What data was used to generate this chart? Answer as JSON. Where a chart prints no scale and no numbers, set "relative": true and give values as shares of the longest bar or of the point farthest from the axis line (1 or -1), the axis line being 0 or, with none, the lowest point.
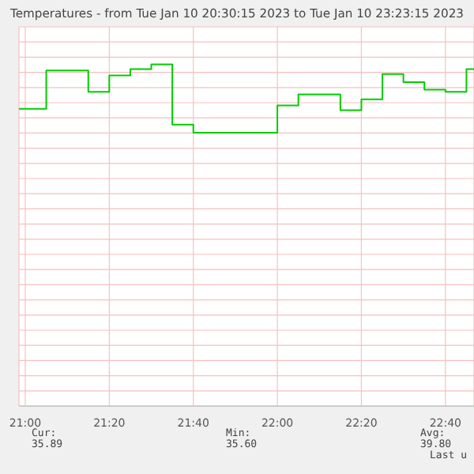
{
  "chart_data": {
    "type": "step",
    "title": "Temperatures - from Tue Jan 10 20:30:15 2023 to Tue Jan 10 23:23:15 2023",
    "relative": true,
    "x": [
      20.975,
      21.0833,
      21.25,
      21.3333,
      21.4167,
      21.5,
      21.5833,
      21.6667,
      22.0,
      22.0833,
      22.25,
      22.3333,
      22.4167,
      22.5,
      22.5833,
      22.6667,
      22.75,
      22.78
    ],
    "series": [
      {
        "color": "#00cc00",
        "values": [
          0.35,
          0.91,
          0.6,
          0.84,
          0.93,
          1,
          0.12,
          0,
          0.4,
          0.56,
          0.33,
          0.49,
          0.86,
          0.74,
          0.63,
          0.6,
          0.93,
          0.93
        ]
      }
    ],
    "xlim": [
      20.975,
      22.78
    ],
    "xticks": [
      {
        "value": 21,
        "label": "21:00"
      },
      {
        "value": 21.3333,
        "label": "21:20"
      },
      {
        "value": 21.6667,
        "label": "21:40"
      },
      {
        "value": 22,
        "label": "22:00"
      },
      {
        "value": 22.3333,
        "label": "22:20"
      },
      {
        "value": 22.6667,
        "label": "22:40"
      }
    ],
    "grid": true,
    "legend": false,
    "marker": "none",
    "line_style": "solid",
    "annotations": [
      "Cur:",
      "35.89",
      "Min:",
      "35.60",
      "Avg:",
      "39.80",
      "Last u"
    ]
  }
}
